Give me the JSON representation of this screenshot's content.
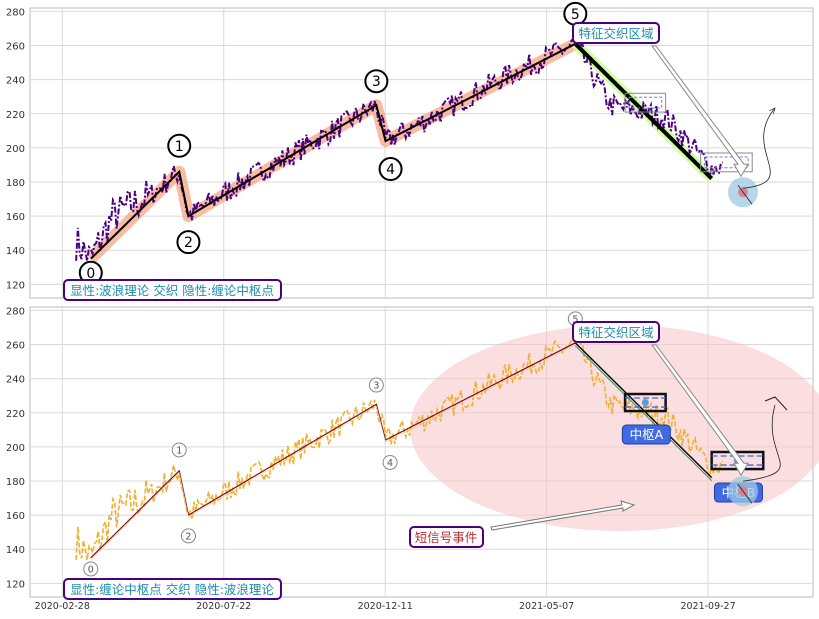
{
  "chart_data": [
    {
      "type": "line",
      "panel": "top",
      "ylim": [
        112,
        282
      ],
      "y_ticks": [
        120,
        140,
        160,
        180,
        200,
        220,
        240,
        260,
        280
      ],
      "x_ticks": [
        "2020-02-28",
        "2020-07-22",
        "2020-12-11",
        "2021-05-07",
        "2021-09-27"
      ],
      "xlim_index": [
        -25,
        400
      ],
      "grid": true,
      "price_color": "#4b0082",
      "wave_points": [
        {
          "label": "0",
          "i": 8,
          "y": 135
        },
        {
          "label": "1",
          "i": 56,
          "y": 186
        },
        {
          "label": "2",
          "i": 61,
          "y": 160
        },
        {
          "label": "3",
          "i": 163,
          "y": 225
        },
        {
          "label": "4",
          "i": 168,
          "y": 204
        },
        {
          "label": "5",
          "i": 271,
          "y": 261
        }
      ],
      "decline_segment": [
        {
          "i": 271,
          "y": 261
        },
        {
          "i": 345,
          "y": 182
        }
      ],
      "boxes": [
        {
          "i0": 298,
          "i1": 320,
          "y0": 221,
          "y1": 232
        },
        {
          "i0": 339,
          "i1": 367,
          "y0": 186,
          "y1": 197
        }
      ],
      "target_point": {
        "i": 362,
        "y": 174
      },
      "annotation_text": "特征交织区域",
      "caption": "显性:波浪理论 交织 隐性:缠论中枢点"
    },
    {
      "type": "line",
      "panel": "bottom",
      "ylim": [
        112,
        282
      ],
      "y_ticks": [
        120,
        140,
        160,
        180,
        200,
        220,
        240,
        260,
        280
      ],
      "x_ticks": [
        "2020-02-28",
        "2020-07-22",
        "2020-12-11",
        "2021-05-07",
        "2021-09-27"
      ],
      "xlim_index": [
        -25,
        400
      ],
      "grid": true,
      "price_color": "#f0b030",
      "wave_points": [
        {
          "label": "0",
          "i": 8,
          "y": 135
        },
        {
          "label": "1",
          "i": 56,
          "y": 186
        },
        {
          "label": "2",
          "i": 61,
          "y": 160
        },
        {
          "label": "3",
          "i": 163,
          "y": 225
        },
        {
          "label": "4",
          "i": 168,
          "y": 204
        },
        {
          "label": "5",
          "i": 271,
          "y": 261
        }
      ],
      "decline_segment": [
        {
          "i": 271,
          "y": 261
        },
        {
          "i": 345,
          "y": 182
        }
      ],
      "pivots": [
        {
          "label": "中枢A",
          "i0": 298,
          "i1": 320,
          "y0": 221,
          "y1": 231
        },
        {
          "label": "中枢B",
          "i0": 345,
          "i1": 373,
          "y0": 187,
          "y1": 197
        }
      ],
      "target_point": {
        "i": 362,
        "y": 174
      },
      "annotation_text": "特征交织区域",
      "signal_text": "短信号事件",
      "caption": "显性:缠论中枢点 交织 隐性:波浪理论"
    }
  ]
}
